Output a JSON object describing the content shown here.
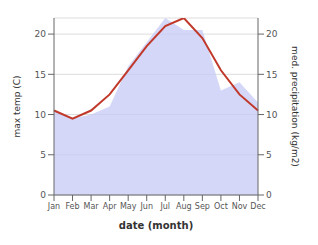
{
  "chart_data": {
    "type": "line",
    "xlabel": "date (month)",
    "ylabel": "max temp (C)",
    "y2label": "med. precipitation (kg/m2)",
    "categories": [
      "Jan",
      "Feb",
      "Mar",
      "Apr",
      "May",
      "Jun",
      "Jul",
      "Aug",
      "Sep",
      "Oct",
      "Nov",
      "Dec"
    ],
    "series": [
      {
        "type": "area",
        "color": "#c5caf5",
        "axis": "y2",
        "values": [
          10.5,
          9.5,
          10.0,
          11.0,
          16.0,
          19.0,
          22.0,
          20.5,
          20.5,
          13.0,
          14.0,
          11.5
        ]
      },
      {
        "type": "line",
        "color": "#c0392b",
        "values": [
          10.5,
          9.5,
          10.5,
          12.5,
          15.5,
          18.5,
          21.0,
          22.0,
          19.5,
          15.5,
          12.5,
          10.5
        ]
      }
    ],
    "ylim": [
      0,
      22
    ],
    "yticks": [
      0,
      5,
      10,
      15,
      20
    ],
    "y2lim": [
      0,
      22
    ],
    "y2ticks": [
      0,
      5,
      10,
      15,
      20
    ],
    "grid": true
  }
}
